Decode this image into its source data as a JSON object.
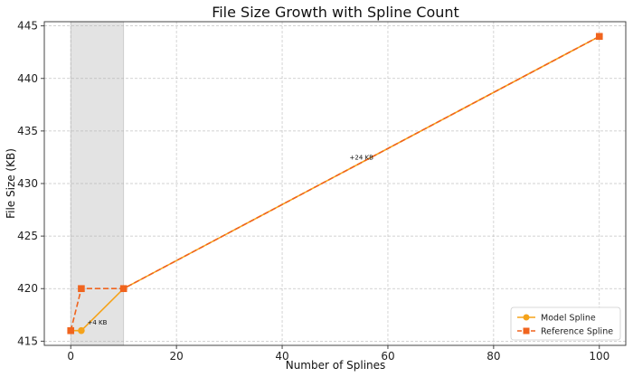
{
  "chart_data": {
    "type": "line",
    "title": "File Size Growth with Spline Count",
    "xlabel": "Number of Splines",
    "ylabel": "File Size (KB)",
    "xlim": [
      -5,
      105
    ],
    "ylim": [
      414.6,
      445.4
    ],
    "xticks": [
      0,
      20,
      40,
      60,
      80,
      100
    ],
    "yticks": [
      415,
      420,
      425,
      430,
      435,
      440,
      445
    ],
    "grid": true,
    "legend_position": "bottom-right",
    "highlight_region": {
      "x_from": 0,
      "x_to": 10,
      "color": "#e3e3e3"
    },
    "series": [
      {
        "name": "Model Spline",
        "style": "solid",
        "marker": "circle",
        "color": "#f5a31a",
        "x": [
          0,
          2,
          10,
          100
        ],
        "y": [
          416,
          416,
          420,
          444
        ]
      },
      {
        "name": "Reference Spline",
        "style": "dashed",
        "marker": "square",
        "color": "#f0641e",
        "x": [
          0,
          2,
          10,
          100
        ],
        "y": [
          416,
          420,
          420,
          444
        ]
      }
    ],
    "annotations": [
      {
        "text": "+4 KB",
        "x": 5,
        "y": 416.8
      },
      {
        "text": "+24 KB",
        "x": 55,
        "y": 432.5
      }
    ]
  }
}
